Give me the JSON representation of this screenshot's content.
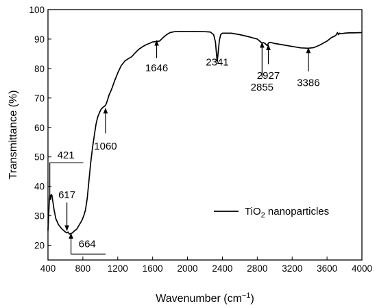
{
  "chart_data": {
    "type": "line",
    "title": "",
    "xlabel": "Wavenumber (cm−1)",
    "ylabel": "Transmittance (%)",
    "xlim": [
      400,
      4000
    ],
    "ylim": [
      15,
      100
    ],
    "x_ticks": [
      400,
      800,
      1200,
      1600,
      2000,
      2400,
      2800,
      3200,
      3600,
      4000
    ],
    "y_ticks": [
      20,
      30,
      40,
      50,
      60,
      70,
      80,
      90,
      100
    ],
    "grid": false,
    "legend": {
      "position": "right",
      "entries": [
        "TiO2 nanoparticles"
      ]
    },
    "series": [
      {
        "name": "TiO2 nanoparticles",
        "color": "#000000",
        "points": [
          [
            400,
            25
          ],
          [
            408,
            30
          ],
          [
            415,
            35
          ],
          [
            421,
            37
          ],
          [
            428,
            35.5
          ],
          [
            436,
            37.2
          ],
          [
            445,
            37
          ],
          [
            455,
            35
          ],
          [
            470,
            32
          ],
          [
            490,
            29
          ],
          [
            520,
            27
          ],
          [
            560,
            25.5
          ],
          [
            600,
            24.5
          ],
          [
            617,
            24.2
          ],
          [
            630,
            24.5
          ],
          [
            645,
            23.8
          ],
          [
            664,
            24
          ],
          [
            680,
            24.2
          ],
          [
            700,
            24.8
          ],
          [
            730,
            25.5
          ],
          [
            760,
            27
          ],
          [
            790,
            28.5
          ],
          [
            810,
            30
          ],
          [
            830,
            32
          ],
          [
            850,
            36
          ],
          [
            870,
            42
          ],
          [
            890,
            48
          ],
          [
            910,
            53
          ],
          [
            930,
            57
          ],
          [
            950,
            61
          ],
          [
            970,
            63.5
          ],
          [
            990,
            65
          ],
          [
            1010,
            66.2
          ],
          [
            1030,
            66.8
          ],
          [
            1060,
            67.5
          ],
          [
            1080,
            69
          ],
          [
            1100,
            71
          ],
          [
            1130,
            73
          ],
          [
            1160,
            75.5
          ],
          [
            1200,
            78.5
          ],
          [
            1240,
            81
          ],
          [
            1280,
            82.5
          ],
          [
            1320,
            83.3
          ],
          [
            1360,
            84
          ],
          [
            1400,
            85.3
          ],
          [
            1440,
            86.5
          ],
          [
            1480,
            87.3
          ],
          [
            1520,
            88
          ],
          [
            1560,
            88.5
          ],
          [
            1600,
            89
          ],
          [
            1646,
            89.2
          ],
          [
            1680,
            89.3
          ],
          [
            1720,
            90.5
          ],
          [
            1760,
            91.5
          ],
          [
            1800,
            92.2
          ],
          [
            1850,
            92.5
          ],
          [
            1900,
            92.6
          ],
          [
            2000,
            92.6
          ],
          [
            2100,
            92.6
          ],
          [
            2200,
            92.5
          ],
          [
            2260,
            92.4
          ],
          [
            2300,
            91.5
          ],
          [
            2320,
            89
          ],
          [
            2335,
            84
          ],
          [
            2341,
            82.3
          ],
          [
            2350,
            85
          ],
          [
            2365,
            89.5
          ],
          [
            2380,
            91.5
          ],
          [
            2400,
            92
          ],
          [
            2500,
            92
          ],
          [
            2600,
            91.5
          ],
          [
            2700,
            90.8
          ],
          [
            2800,
            90
          ],
          [
            2840,
            89
          ],
          [
            2855,
            88.6
          ],
          [
            2870,
            88.8
          ],
          [
            2890,
            88.5
          ],
          [
            2905,
            88
          ],
          [
            2915,
            87.8
          ],
          [
            2927,
            88.6
          ],
          [
            2940,
            88.9
          ],
          [
            2960,
            88.8
          ],
          [
            3000,
            88.5
          ],
          [
            3100,
            88
          ],
          [
            3200,
            87.5
          ],
          [
            3300,
            87
          ],
          [
            3386,
            86.9
          ],
          [
            3450,
            87.1
          ],
          [
            3520,
            88
          ],
          [
            3600,
            89.3
          ],
          [
            3650,
            90.5
          ],
          [
            3700,
            91.2
          ],
          [
            3720,
            92.2
          ],
          [
            3730,
            91.5
          ],
          [
            3745,
            92
          ],
          [
            3760,
            91.8
          ],
          [
            3800,
            92
          ],
          [
            3850,
            92.1
          ],
          [
            3900,
            92.1
          ],
          [
            4000,
            92.2
          ]
        ]
      }
    ],
    "annotations": [
      {
        "label": "1646",
        "x": 1646,
        "type": "arrow-up",
        "tip_y": 89.5,
        "tail_y": 83.5,
        "text_y": 79
      },
      {
        "label": "2341",
        "type": "text",
        "x": 2341,
        "text_y": 81
      },
      {
        "label": "2855",
        "x": 2855,
        "type": "arrow-up",
        "tip_y": 88.8,
        "tail_y": 77,
        "text_y": 72.5
      },
      {
        "label": "2927",
        "x": 2927,
        "type": "arrow-up",
        "tip_y": 88,
        "tail_y": 81.5,
        "text_y": 76.5
      },
      {
        "label": "3386",
        "x": 3386,
        "type": "arrow-up",
        "tip_y": 87,
        "tail_y": 79,
        "text_y": 74
      },
      {
        "label": "1060",
        "x": 1060,
        "type": "arrow-up",
        "tip_y": 66.5,
        "tail_y": 58,
        "text_y": 52.5
      },
      {
        "label": "421",
        "type": "bracket-top",
        "x": 421,
        "bar_y": 48,
        "bar_x_end": 805,
        "text_x": 605,
        "text_y": 49.5
      },
      {
        "label": "617",
        "x": 617,
        "type": "arrow-down",
        "tip_y": 25,
        "tail_y": 34.5,
        "text_y": 36
      },
      {
        "label": "664",
        "type": "bracket-bottom",
        "x": 664,
        "tip_y": 24,
        "bar_y": 17,
        "bar_x_end": 1060,
        "text_x": 850,
        "text_y": 19.3
      }
    ]
  }
}
